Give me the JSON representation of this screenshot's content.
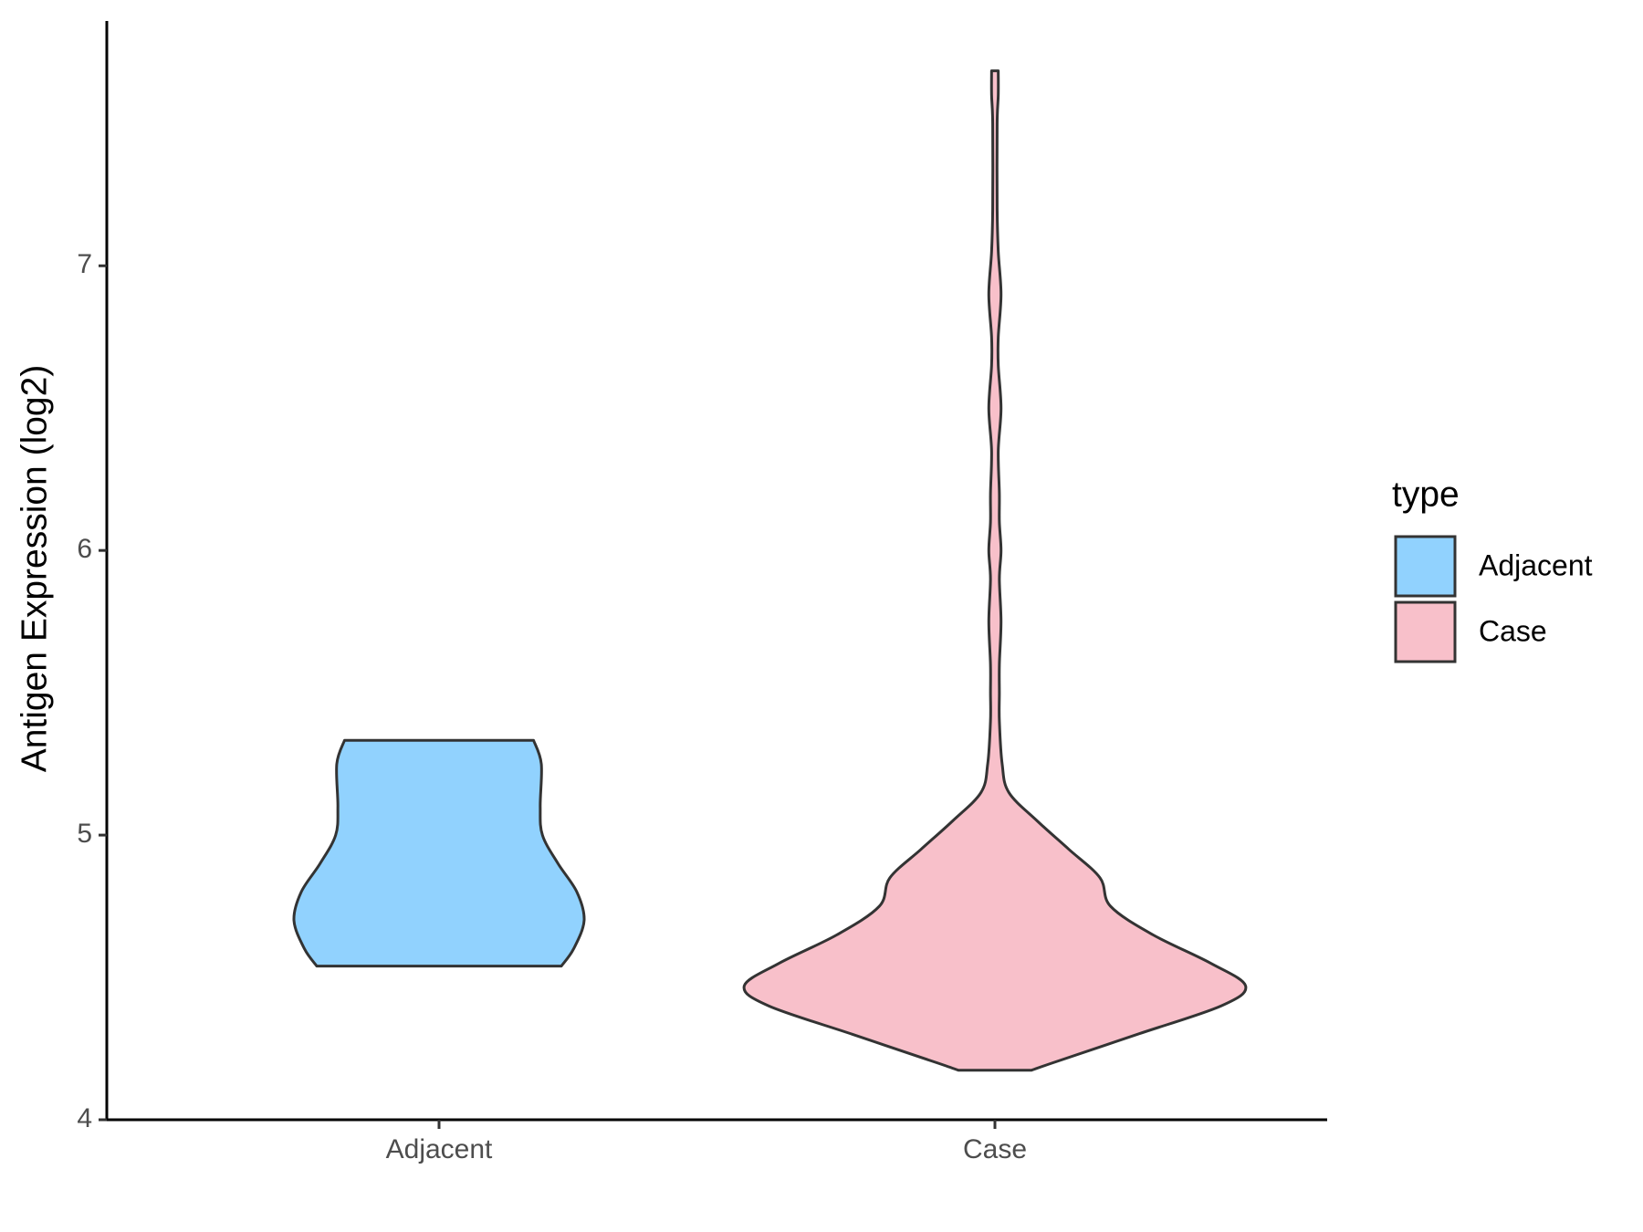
{
  "chart_data": {
    "type": "violin",
    "y_label": "Antigen Expression (log2)",
    "categories": [
      "Adjacent",
      "Case"
    ],
    "legend_title": "type",
    "legend_position": "right",
    "ylim": [
      4,
      7.86
    ],
    "yticks": [
      4,
      5,
      6,
      7
    ],
    "series": [
      {
        "name": "Adjacent",
        "color": "#91d2fe",
        "y": [
          4.54,
          4.6,
          4.7,
          4.8,
          4.9,
          5.0,
          5.1,
          5.25,
          5.333
        ],
        "width": [
          0.22,
          0.242,
          0.261,
          0.248,
          0.214,
          0.186,
          0.182,
          0.184,
          0.17
        ]
      },
      {
        "name": "Case",
        "color": "#f8c0ca",
        "y": [
          4.174,
          4.2,
          4.3,
          4.4,
          4.47,
          4.55,
          4.65,
          4.75,
          4.85,
          4.95,
          5.05,
          5.15,
          5.25,
          5.4,
          5.5,
          5.6,
          5.75,
          5.9,
          6.0,
          6.1,
          6.2,
          6.35,
          6.5,
          6.65,
          6.75,
          6.9,
          7.05,
          7.2,
          7.5,
          7.6,
          7.685
        ],
        "width": [
          0.066,
          0.104,
          0.256,
          0.407,
          0.451,
          0.388,
          0.284,
          0.208,
          0.189,
          0.133,
          0.076,
          0.025,
          0.013,
          0.008,
          0.008,
          0.008,
          0.011,
          0.008,
          0.011,
          0.008,
          0.008,
          0.006,
          0.011,
          0.006,
          0.006,
          0.011,
          0.006,
          0.004,
          0.004,
          0.006,
          0.006
        ]
      }
    ]
  }
}
